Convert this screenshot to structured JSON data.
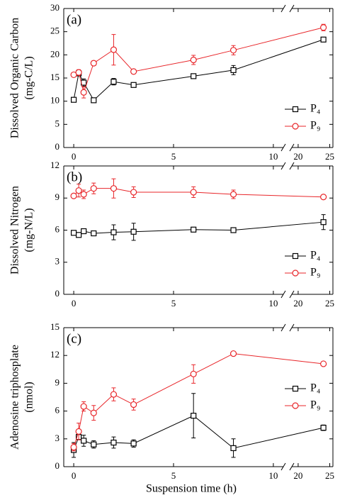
{
  "chart_data": [
    {
      "type": "line",
      "panel_label": "(a)",
      "ylabel": [
        "Dissolved Organic Carbon",
        "(mg-C/L)"
      ],
      "ylim": [
        0,
        30
      ],
      "yticks": [
        0,
        5,
        10,
        15,
        20,
        25,
        30
      ],
      "xlim": [
        -0.5,
        25.5
      ],
      "xbreak": [
        10.5,
        19
      ],
      "xticks": [
        0,
        5,
        10,
        20,
        25
      ],
      "legend": "lower right",
      "x": [
        0,
        0.25,
        0.5,
        1,
        2,
        3,
        6,
        8,
        24
      ],
      "series": [
        {
          "name": "P₄",
          "color": "#000000",
          "marker": "square",
          "values": [
            10.3,
            16,
            14,
            10.2,
            14.2,
            13.5,
            15.4,
            16.7,
            23.3
          ],
          "errors": [
            0.5,
            0.5,
            0.8,
            0.3,
            0.7,
            0.4,
            0.5,
            1.0,
            0.5
          ]
        },
        {
          "name": "P₉",
          "color": "#e8262a",
          "marker": "circle",
          "values": [
            15.7,
            16.2,
            11.9,
            18.2,
            21.1,
            16.4,
            18.9,
            21.0,
            25.9
          ],
          "errors": [
            0.4,
            0.6,
            1.2,
            0.5,
            3.3,
            0.4,
            1.0,
            1.0,
            0.7
          ]
        }
      ]
    },
    {
      "type": "line",
      "panel_label": "(b)",
      "ylabel": [
        "Dissolved Nitrogen",
        "(mg-N/L)"
      ],
      "ylim": [
        0,
        12
      ],
      "yticks": [
        0,
        3,
        6,
        9,
        12
      ],
      "xlim": [
        -0.5,
        25.5
      ],
      "xbreak": [
        10.5,
        19
      ],
      "xticks": [
        0,
        5,
        10,
        20,
        25
      ],
      "legend": "lower right",
      "x": [
        0,
        0.25,
        0.5,
        1,
        2,
        3,
        6,
        8,
        24
      ],
      "series": [
        {
          "name": "P₄",
          "color": "#000000",
          "marker": "square",
          "values": [
            5.75,
            5.55,
            5.9,
            5.7,
            5.8,
            5.85,
            6.05,
            6.0,
            6.75
          ],
          "errors": [
            0.1,
            0.15,
            0.15,
            0.15,
            0.7,
            0.8,
            0.15,
            0.1,
            0.7
          ]
        },
        {
          "name": "P₉",
          "color": "#e8262a",
          "marker": "circle",
          "values": [
            9.2,
            9.7,
            9.35,
            9.9,
            9.9,
            9.55,
            9.55,
            9.35,
            9.1
          ],
          "errors": [
            0.1,
            0.6,
            0.4,
            0.5,
            0.9,
            0.5,
            0.5,
            0.4,
            0.15
          ]
        }
      ]
    },
    {
      "type": "line",
      "panel_label": "(c)",
      "ylabel": [
        "Adenosine triphosplate",
        "(nmol)"
      ],
      "ylim": [
        0,
        15
      ],
      "yticks": [
        0,
        3,
        6,
        9,
        12,
        15
      ],
      "xlim": [
        -0.5,
        25.5
      ],
      "xbreak": [
        10.5,
        19
      ],
      "xticks": [
        0,
        5,
        10,
        20,
        25
      ],
      "xlabel": "Suspension time (h)",
      "legend": "center right",
      "x": [
        0,
        0.25,
        0.5,
        1,
        2,
        3,
        6,
        8,
        24
      ],
      "series": [
        {
          "name": "P₄",
          "color": "#000000",
          "marker": "square",
          "values": [
            1.8,
            3.2,
            2.8,
            2.4,
            2.6,
            2.5,
            5.5,
            2.0,
            4.2
          ],
          "errors": [
            0.8,
            0.3,
            0.6,
            0.4,
            0.6,
            0.4,
            2.4,
            1.0,
            0.3
          ]
        },
        {
          "name": "P₉",
          "color": "#e8262a",
          "marker": "circle",
          "values": [
            2.1,
            3.8,
            6.5,
            5.8,
            7.8,
            6.7,
            10.0,
            12.2,
            11.1
          ],
          "errors": [
            0.4,
            0.9,
            0.5,
            0.8,
            0.7,
            0.6,
            1.0,
            0.2,
            0.2
          ]
        }
      ]
    }
  ]
}
